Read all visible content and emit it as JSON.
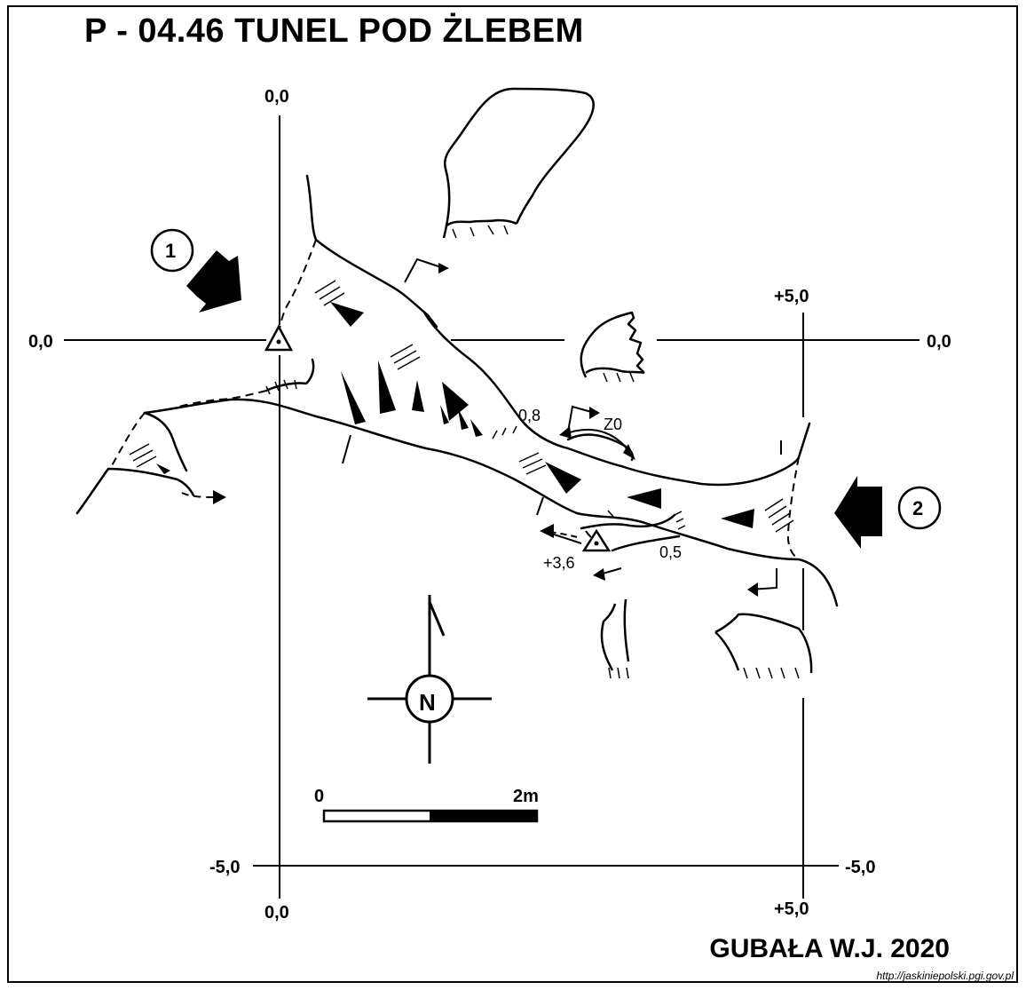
{
  "title": "P - 04.46  TUNEL POD ŻLEBEM",
  "author": "GUBAŁA W.J.  2020",
  "source_url": "http://jaskiniepolski.pgi.gov.pl",
  "grid_labels": {
    "top_x0": "0,0",
    "left_y0": "0,0",
    "right_y0": "0,0",
    "x5_upper": "+5,0",
    "left_ym5": "-5,0",
    "right_ym5": "-5,0",
    "bottom_x0": "0,0",
    "bottom_x5": "+5,0"
  },
  "entrances": [
    {
      "number": "1"
    },
    {
      "number": "2"
    }
  ],
  "annotations": {
    "height_08": "0,8",
    "z0": "Z0",
    "height_36": "+3,6",
    "height_05": "0,5"
  },
  "north_label": "N",
  "scale_bar": {
    "start": "0",
    "end": "2m"
  }
}
